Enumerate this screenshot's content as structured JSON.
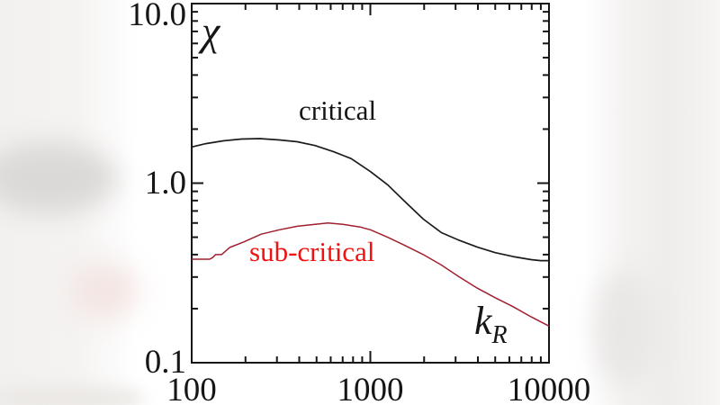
{
  "chart_data": {
    "type": "line",
    "title": "",
    "x_scale": "log",
    "y_scale": "log",
    "xlim": [
      100,
      10000
    ],
    "ylim": [
      0.1,
      10.0
    ],
    "grid": false,
    "legend_position": "inline-text-labels",
    "frame_color": "#161616",
    "plot_background": "#ffffff",
    "ylabel": "χ",
    "xlabel": "k_R",
    "x_ticks": [
      {
        "value": 100,
        "label": "100"
      },
      {
        "value": 1000,
        "label": "1000"
      },
      {
        "value": 10000,
        "label": "10000"
      }
    ],
    "y_ticks": [
      {
        "value": 0.1,
        "label": "0.1"
      },
      {
        "value": 1.0,
        "label": "1.0"
      },
      {
        "value": 10.0,
        "label": "10.0"
      }
    ],
    "minor_ticks": "log decades, 2–9 per decade, drawn inward on all four sides",
    "series": [
      {
        "name": "critical",
        "label_text": "critical",
        "color": "#1c1c1c",
        "label_color": "#141414",
        "points": [
          [
            100,
            1.59
          ],
          [
            120,
            1.66
          ],
          [
            150,
            1.72
          ],
          [
            190,
            1.76
          ],
          [
            240,
            1.77
          ],
          [
            310,
            1.74
          ],
          [
            390,
            1.7
          ],
          [
            490,
            1.62
          ],
          [
            620,
            1.5
          ],
          [
            780,
            1.37
          ],
          [
            1000,
            1.16
          ],
          [
            1250,
            0.98
          ],
          [
            1560,
            0.79
          ],
          [
            1980,
            0.63
          ],
          [
            2500,
            0.53
          ],
          [
            3150,
            0.48
          ],
          [
            3970,
            0.44
          ],
          [
            5000,
            0.41
          ],
          [
            6300,
            0.39
          ],
          [
            7950,
            0.375
          ],
          [
            9000,
            0.37
          ],
          [
            10000,
            0.37
          ]
        ]
      },
      {
        "name": "sub-critical",
        "label_text": "sub-critical",
        "color": "#a0202f",
        "label_color": "#ee1211",
        "points": [
          [
            100,
            0.377
          ],
          [
            126,
            0.377
          ],
          [
            131,
            0.385
          ],
          [
            136,
            0.4
          ],
          [
            147,
            0.4
          ],
          [
            163,
            0.438
          ],
          [
            195,
            0.47
          ],
          [
            245,
            0.52
          ],
          [
            310,
            0.55
          ],
          [
            390,
            0.575
          ],
          [
            490,
            0.59
          ],
          [
            580,
            0.6
          ],
          [
            700,
            0.59
          ],
          [
            875,
            0.57
          ],
          [
            1000,
            0.55
          ],
          [
            1250,
            0.5
          ],
          [
            1560,
            0.45
          ],
          [
            1980,
            0.4
          ],
          [
            2500,
            0.35
          ],
          [
            3150,
            0.3
          ],
          [
            3970,
            0.26
          ],
          [
            5000,
            0.23
          ],
          [
            6300,
            0.205
          ],
          [
            7950,
            0.18
          ],
          [
            10000,
            0.16
          ]
        ]
      }
    ]
  },
  "annotations": {
    "y_symbol": "χ",
    "x_symbol_base": "k",
    "x_symbol_sub": "R"
  }
}
